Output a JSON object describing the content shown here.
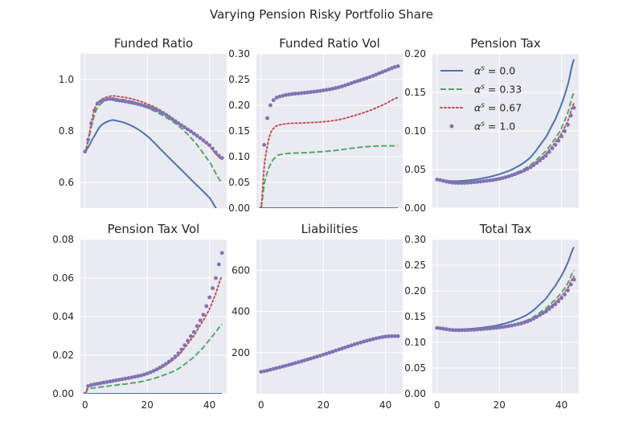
{
  "figure": {
    "title": "Varying Pension Risky Portfolio Share"
  },
  "colors": {
    "background": "#ffffff",
    "axes_face": "#eaeaf2",
    "grid": "#ffffff",
    "series_0": "#4c72b0",
    "series_033": "#55a868",
    "series_067": "#c44e52",
    "series_1": "#8172b2"
  },
  "legend": {
    "placement": "upper-left of Pension Tax panel",
    "entries": [
      {
        "symbol": "α",
        "sup": "s",
        "eq": "=",
        "value": "0.0",
        "style": "solid"
      },
      {
        "symbol": "α",
        "sup": "s",
        "eq": "=",
        "value": "0.33",
        "style": "dashed"
      },
      {
        "symbol": "α",
        "sup": "s",
        "eq": "=",
        "value": "0.67",
        "style": "dotted"
      },
      {
        "symbol": "α",
        "sup": "s",
        "eq": "=",
        "value": "1.0",
        "style": "markers"
      }
    ]
  },
  "chart_data": [
    {
      "type": "line",
      "title": "Funded Ratio",
      "xlim": [
        -1.5,
        45.5
      ],
      "ylim": [
        0.5,
        1.1
      ],
      "xticks": [
        0,
        20,
        40
      ],
      "yticks": [
        0.6,
        0.8,
        1.0
      ],
      "ytick_labels": [
        "0.6",
        "0.8",
        "1.0"
      ],
      "show_xticklabels": false,
      "grid": true,
      "x_points": [
        0,
        3,
        5,
        8,
        10,
        15,
        20,
        25,
        30,
        35,
        40,
        44
      ],
      "series": [
        {
          "name": "α^s = 0.0",
          "values": [
            0.72,
            0.78,
            0.82,
            0.84,
            0.84,
            0.82,
            0.78,
            0.72,
            0.66,
            0.6,
            0.54,
            0.47
          ]
        },
        {
          "name": "α^s = 0.33",
          "values": [
            0.72,
            0.86,
            0.905,
            0.925,
            0.925,
            0.915,
            0.89,
            0.86,
            0.82,
            0.76,
            0.68,
            0.6
          ]
        },
        {
          "name": "α^s = 0.67",
          "values": [
            0.72,
            0.88,
            0.92,
            0.935,
            0.935,
            0.925,
            0.905,
            0.875,
            0.83,
            0.79,
            0.74,
            0.69
          ]
        },
        {
          "name": "α^s = 1.0",
          "values": [
            0.72,
            0.88,
            0.915,
            0.925,
            0.92,
            0.91,
            0.895,
            0.87,
            0.83,
            0.79,
            0.745,
            0.695
          ]
        }
      ]
    },
    {
      "type": "line",
      "title": "Funded Ratio Vol",
      "xlim": [
        -1.5,
        45.5
      ],
      "ylim": [
        0,
        0.3
      ],
      "xticks": [
        0,
        20,
        40
      ],
      "yticks": [
        0.0,
        0.05,
        0.1,
        0.15,
        0.2,
        0.25,
        0.3
      ],
      "ytick_labels": [
        "0.00",
        "0.05",
        "0.10",
        "0.15",
        "0.20",
        "0.25",
        "0.30"
      ],
      "show_xticklabels": false,
      "grid": true,
      "x_points": [
        0,
        1,
        2,
        3,
        4,
        5,
        6,
        8,
        10,
        15,
        20,
        25,
        30,
        35,
        40,
        44
      ],
      "series": [
        {
          "name": "α^s = 0.0",
          "values": [
            0,
            0,
            0,
            0,
            0,
            0,
            0,
            0,
            0,
            0,
            0,
            0,
            0,
            0,
            0,
            0
          ]
        },
        {
          "name": "α^s = 0.33",
          "values": [
            0,
            0.045,
            0.07,
            0.085,
            0.095,
            0.101,
            0.104,
            0.106,
            0.107,
            0.108,
            0.11,
            0.113,
            0.117,
            0.12,
            0.121,
            0.121
          ]
        },
        {
          "name": "α^s = 0.67",
          "values": [
            0,
            0.08,
            0.12,
            0.145,
            0.155,
            0.16,
            0.162,
            0.164,
            0.165,
            0.166,
            0.168,
            0.172,
            0.18,
            0.19,
            0.203,
            0.215
          ]
        },
        {
          "name": "α^s = 1.0",
          "values": [
            0,
            0.123,
            0.175,
            0.2,
            0.21,
            0.215,
            0.217,
            0.22,
            0.222,
            0.225,
            0.229,
            0.235,
            0.245,
            0.255,
            0.267,
            0.276
          ]
        }
      ]
    },
    {
      "type": "line",
      "title": "Pension Tax",
      "xlim": [
        -1.5,
        45.5
      ],
      "ylim": [
        0,
        0.2
      ],
      "xticks": [
        0,
        20,
        40
      ],
      "yticks": [
        0.0,
        0.05,
        0.1,
        0.15,
        0.2
      ],
      "ytick_labels": [
        "0.00",
        "0.05",
        "0.10",
        "0.15",
        "0.20"
      ],
      "show_xticklabels": false,
      "grid": true,
      "x_points": [
        0,
        5,
        10,
        15,
        20,
        25,
        30,
        35,
        38,
        40,
        42,
        44
      ],
      "series": [
        {
          "name": "α^s = 0.0",
          "values": [
            0.037,
            0.035,
            0.036,
            0.039,
            0.044,
            0.052,
            0.066,
            0.092,
            0.115,
            0.135,
            0.16,
            0.193
          ]
        },
        {
          "name": "α^s = 0.33",
          "values": [
            0.037,
            0.033,
            0.033,
            0.035,
            0.039,
            0.045,
            0.056,
            0.074,
            0.09,
            0.104,
            0.124,
            0.15
          ]
        },
        {
          "name": "α^s = 0.67",
          "values": [
            0.037,
            0.033,
            0.033,
            0.035,
            0.038,
            0.044,
            0.053,
            0.07,
            0.085,
            0.097,
            0.113,
            0.136
          ]
        },
        {
          "name": "α^s = 1.0",
          "values": [
            0.037,
            0.033,
            0.033,
            0.035,
            0.038,
            0.044,
            0.053,
            0.068,
            0.082,
            0.093,
            0.108,
            0.13
          ]
        }
      ]
    },
    {
      "type": "line",
      "title": "Pension Tax Vol",
      "xlim": [
        -1.5,
        45.5
      ],
      "ylim": [
        0,
        0.08
      ],
      "xticks": [
        0,
        20,
        40
      ],
      "xtick_labels": [
        "0",
        "20",
        "40"
      ],
      "yticks": [
        0.0,
        0.02,
        0.04,
        0.06,
        0.08
      ],
      "ytick_labels": [
        "0.00",
        "0.02",
        "0.04",
        "0.06",
        "0.08"
      ],
      "show_xticklabels": true,
      "grid": true,
      "x_points": [
        0,
        1,
        5,
        10,
        15,
        20,
        25,
        30,
        35,
        38,
        40,
        42,
        44
      ],
      "series": [
        {
          "name": "α^s = 0.0",
          "values": [
            0,
            0,
            0,
            0,
            0,
            0,
            0,
            0,
            0,
            0,
            0,
            0,
            0
          ]
        },
        {
          "name": "α^s = 0.33",
          "values": [
            0,
            0.0025,
            0.0035,
            0.0045,
            0.0055,
            0.007,
            0.0095,
            0.013,
            0.019,
            0.024,
            0.028,
            0.032,
            0.036
          ]
        },
        {
          "name": "α^s = 0.67",
          "values": [
            0,
            0.004,
            0.0055,
            0.007,
            0.0085,
            0.0105,
            0.014,
            0.02,
            0.03,
            0.038,
            0.044,
            0.052,
            0.061
          ]
        },
        {
          "name": "α^s = 1.0",
          "values": [
            0,
            0.004,
            0.0055,
            0.007,
            0.0085,
            0.0105,
            0.0145,
            0.021,
            0.032,
            0.041,
            0.05,
            0.06,
            0.073
          ]
        }
      ]
    },
    {
      "type": "line",
      "title": "Liabilities",
      "xlim": [
        -1.5,
        45.5
      ],
      "ylim": [
        0,
        750
      ],
      "xticks": [
        0,
        20,
        40
      ],
      "xtick_labels": [
        "0",
        "20",
        "40"
      ],
      "yticks": [
        200,
        400,
        600
      ],
      "ytick_labels": [
        "200",
        "400",
        "600"
      ],
      "show_xticklabels": true,
      "grid": true,
      "x_points": [
        0,
        5,
        10,
        15,
        20,
        25,
        30,
        35,
        40,
        44
      ],
      "series": [
        {
          "name": "α^s = 0.0",
          "values": [
            107,
            125,
            145,
            167,
            190,
            215,
            240,
            262,
            278,
            280
          ]
        },
        {
          "name": "α^s = 0.33",
          "values": [
            107,
            125,
            145,
            167,
            190,
            215,
            240,
            262,
            278,
            280
          ]
        },
        {
          "name": "α^s = 0.67",
          "values": [
            107,
            125,
            145,
            167,
            190,
            215,
            240,
            262,
            278,
            280
          ]
        },
        {
          "name": "α^s = 1.0",
          "values": [
            107,
            125,
            145,
            167,
            190,
            215,
            240,
            262,
            278,
            280
          ]
        }
      ]
    },
    {
      "type": "line",
      "title": "Total Tax",
      "xlim": [
        -1.5,
        45.5
      ],
      "ylim": [
        0,
        0.3
      ],
      "xticks": [
        0,
        20,
        40
      ],
      "xtick_labels": [
        "0",
        "20",
        "40"
      ],
      "yticks": [
        0.0,
        0.05,
        0.1,
        0.15,
        0.2,
        0.25,
        0.3
      ],
      "ytick_labels": [
        "0.00",
        "0.05",
        "0.10",
        "0.15",
        "0.20",
        "0.25",
        "0.30"
      ],
      "show_xticklabels": true,
      "grid": true,
      "x_points": [
        0,
        5,
        10,
        15,
        20,
        25,
        30,
        35,
        38,
        40,
        42,
        44
      ],
      "series": [
        {
          "name": "α^s = 0.0",
          "values": [
            0.128,
            0.125,
            0.126,
            0.129,
            0.134,
            0.143,
            0.158,
            0.185,
            0.21,
            0.23,
            0.255,
            0.285
          ]
        },
        {
          "name": "α^s = 0.33",
          "values": [
            0.128,
            0.124,
            0.124,
            0.126,
            0.129,
            0.135,
            0.146,
            0.166,
            0.183,
            0.197,
            0.215,
            0.24
          ]
        },
        {
          "name": "α^s = 0.67",
          "values": [
            0.128,
            0.124,
            0.124,
            0.126,
            0.129,
            0.134,
            0.144,
            0.162,
            0.177,
            0.19,
            0.206,
            0.228
          ]
        },
        {
          "name": "α^s = 1.0",
          "values": [
            0.128,
            0.124,
            0.124,
            0.126,
            0.129,
            0.134,
            0.143,
            0.16,
            0.174,
            0.186,
            0.201,
            0.222
          ]
        }
      ]
    }
  ]
}
